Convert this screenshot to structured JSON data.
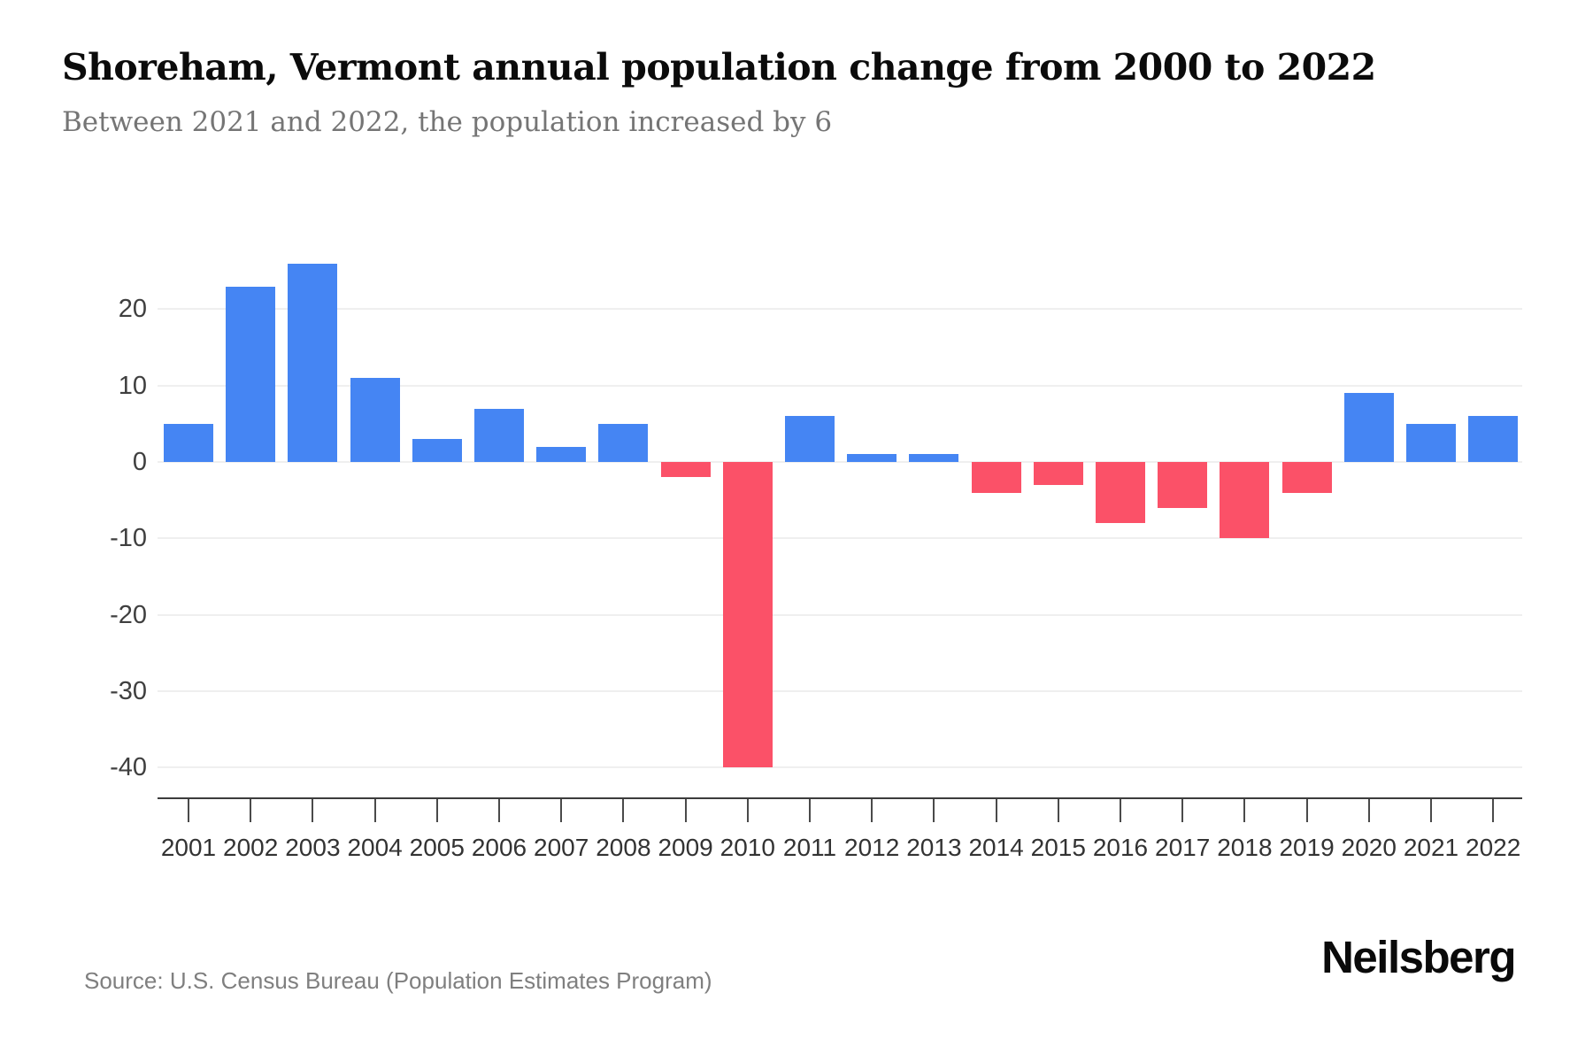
{
  "header": {
    "title": "Shoreham, Vermont annual population change from 2000 to 2022",
    "subtitle": "Between 2021 and 2022, the population increased by 6"
  },
  "footer": {
    "source": "Source: U.S. Census Bureau (Population Estimates Program)",
    "brand": "Neilsberg"
  },
  "chart_data": {
    "type": "bar",
    "title": "Shoreham, Vermont annual population change from 2000 to 2022",
    "subtitle": "Between 2021 and 2022, the population increased by 6",
    "categories": [
      "2001",
      "2002",
      "2003",
      "2004",
      "2005",
      "2006",
      "2007",
      "2008",
      "2009",
      "2010",
      "2011",
      "2012",
      "2013",
      "2014",
      "2015",
      "2016",
      "2017",
      "2018",
      "2019",
      "2020",
      "2021",
      "2022"
    ],
    "values": [
      5,
      23,
      26,
      11,
      3,
      7,
      2,
      5,
      -2,
      -40,
      6,
      1,
      1,
      -4,
      -3,
      -8,
      -6,
      -10,
      -4,
      9,
      5,
      6
    ],
    "xlabel": "",
    "ylabel": "",
    "y_ticks": [
      20,
      10,
      0,
      -10,
      -20,
      -30,
      -40
    ],
    "y_tick_labels": [
      "20",
      "10",
      "0",
      "-10",
      "-20",
      "-30",
      "-40"
    ],
    "ylim": [
      -44,
      33
    ],
    "grid": true,
    "legend": false,
    "colors": {
      "positive_bar": "#4585f3",
      "negative_bar": "#fb5168",
      "gridline": "#efefef",
      "axis": "#3c3c3c",
      "tick_label": "#333333"
    }
  }
}
